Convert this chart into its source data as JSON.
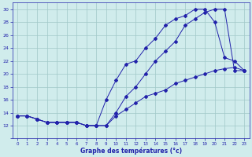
{
  "title": "Graphe des températures (°c)",
  "background_color": "#d0ecec",
  "grid_color": "#a0c8c8",
  "line_color": "#2222aa",
  "xlim": [
    -0.5,
    23.5
  ],
  "ylim": [
    10,
    31
  ],
  "xtick_vals": [
    0,
    1,
    2,
    3,
    4,
    5,
    6,
    7,
    8,
    9,
    10,
    11,
    12,
    13,
    14,
    15,
    16,
    17,
    18,
    19,
    20,
    21,
    22,
    23
  ],
  "ytick_vals": [
    10,
    12,
    14,
    16,
    18,
    20,
    22,
    24,
    26,
    28,
    30
  ],
  "ytick_labels": [
    "",
    "12",
    "",
    "16",
    "",
    "20",
    "",
    "24",
    "",
    "28",
    "30"
  ],
  "series1_x": [
    0,
    1,
    2,
    3,
    4,
    5,
    6,
    7,
    8,
    9,
    10,
    11,
    12,
    13,
    14,
    15,
    16,
    17,
    18,
    19,
    20,
    21,
    22,
    23
  ],
  "series1_y": [
    13.5,
    13.5,
    13.0,
    12.5,
    12.5,
    12.5,
    12.5,
    12.0,
    12.0,
    16.0,
    19.0,
    21.5,
    22.0,
    24.0,
    25.5,
    27.5,
    28.5,
    29.0,
    30.0,
    30.0,
    28.0,
    22.5,
    22.0,
    20.5
  ],
  "series2_x": [
    0,
    1,
    2,
    3,
    4,
    5,
    6,
    7,
    8,
    9,
    10,
    11,
    12,
    13,
    14,
    15,
    16,
    17,
    18,
    19,
    20,
    21,
    22,
    23
  ],
  "series2_y": [
    13.5,
    13.5,
    13.0,
    12.5,
    12.5,
    12.5,
    12.5,
    12.0,
    12.0,
    12.0,
    14.0,
    16.5,
    18.0,
    20.0,
    22.0,
    23.5,
    25.0,
    27.5,
    28.5,
    29.5,
    30.0,
    30.0,
    20.5,
    20.5
  ],
  "series3_x": [
    0,
    1,
    2,
    3,
    4,
    5,
    6,
    7,
    8,
    9,
    10,
    11,
    12,
    13,
    14,
    15,
    16,
    17,
    18,
    19,
    20,
    21,
    22,
    23
  ],
  "series3_y": [
    13.5,
    13.5,
    13.0,
    12.5,
    12.5,
    12.5,
    12.5,
    12.0,
    12.0,
    12.0,
    13.5,
    14.5,
    15.5,
    16.5,
    17.0,
    17.5,
    18.5,
    19.0,
    19.5,
    20.0,
    20.5,
    20.8,
    21.0,
    20.5
  ]
}
